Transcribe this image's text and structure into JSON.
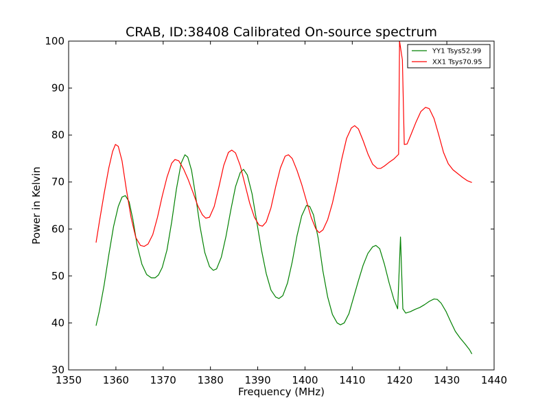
{
  "chart_data": {
    "type": "line",
    "title": "CRAB, ID:38408 Calibrated On-source spectrum",
    "xlabel": "Frequency (MHz)",
    "ylabel": "Power in Kelvin",
    "xlim": [
      1350,
      1440
    ],
    "ylim": [
      30,
      100
    ],
    "xticks": [
      1350,
      1360,
      1370,
      1380,
      1390,
      1400,
      1410,
      1420,
      1430,
      1440
    ],
    "yticks": [
      30,
      40,
      50,
      60,
      70,
      80,
      90,
      100
    ],
    "grid": false,
    "legend_position": "top-right",
    "series": [
      {
        "name": "YY1 Tsys52.99",
        "color": "#008000",
        "points": [
          [
            1355.8,
            39.4
          ],
          [
            1356.5,
            42.5
          ],
          [
            1357.5,
            48.0
          ],
          [
            1358.5,
            54.5
          ],
          [
            1359.5,
            60.5
          ],
          [
            1360.5,
            64.8
          ],
          [
            1361.3,
            66.8
          ],
          [
            1362.0,
            67.1
          ],
          [
            1362.8,
            65.8
          ],
          [
            1363.6,
            62.0
          ],
          [
            1364.5,
            56.5
          ],
          [
            1365.5,
            52.5
          ],
          [
            1366.5,
            50.3
          ],
          [
            1367.5,
            49.6
          ],
          [
            1368.3,
            49.6
          ],
          [
            1369.0,
            50.2
          ],
          [
            1369.8,
            51.8
          ],
          [
            1370.8,
            55.5
          ],
          [
            1371.8,
            61.5
          ],
          [
            1372.8,
            68.5
          ],
          [
            1373.8,
            74.0
          ],
          [
            1374.6,
            75.8
          ],
          [
            1375.2,
            75.3
          ],
          [
            1376.0,
            72.5
          ],
          [
            1376.8,
            67.5
          ],
          [
            1377.8,
            60.5
          ],
          [
            1378.8,
            55.0
          ],
          [
            1379.8,
            52.0
          ],
          [
            1380.6,
            51.2
          ],
          [
            1381.3,
            51.5
          ],
          [
            1382.3,
            54.0
          ],
          [
            1383.3,
            58.5
          ],
          [
            1384.3,
            64.0
          ],
          [
            1385.3,
            69.0
          ],
          [
            1386.3,
            72.0
          ],
          [
            1387.0,
            72.7
          ],
          [
            1387.8,
            71.5
          ],
          [
            1388.8,
            67.5
          ],
          [
            1389.8,
            61.5
          ],
          [
            1390.8,
            55.5
          ],
          [
            1391.8,
            50.5
          ],
          [
            1392.8,
            47.0
          ],
          [
            1393.8,
            45.5
          ],
          [
            1394.5,
            45.2
          ],
          [
            1395.3,
            45.8
          ],
          [
            1396.3,
            48.5
          ],
          [
            1397.3,
            53.0
          ],
          [
            1398.3,
            58.5
          ],
          [
            1399.3,
            62.8
          ],
          [
            1400.3,
            65.0
          ],
          [
            1401.0,
            64.8
          ],
          [
            1401.8,
            63.0
          ],
          [
            1402.8,
            58.0
          ],
          [
            1403.8,
            51.0
          ],
          [
            1404.8,
            45.5
          ],
          [
            1405.8,
            41.8
          ],
          [
            1406.8,
            40.0
          ],
          [
            1407.5,
            39.6
          ],
          [
            1408.3,
            40.0
          ],
          [
            1409.3,
            42.0
          ],
          [
            1410.3,
            45.5
          ],
          [
            1411.3,
            49.0
          ],
          [
            1412.3,
            52.3
          ],
          [
            1413.3,
            54.8
          ],
          [
            1414.3,
            56.2
          ],
          [
            1415.0,
            56.5
          ],
          [
            1415.8,
            55.8
          ],
          [
            1416.8,
            52.5
          ],
          [
            1417.8,
            48.5
          ],
          [
            1418.8,
            45.0
          ],
          [
            1419.6,
            43.0
          ],
          [
            1420.2,
            58.3
          ],
          [
            1420.7,
            43.0
          ],
          [
            1421.3,
            42.1
          ],
          [
            1422.3,
            42.4
          ],
          [
            1423.3,
            42.9
          ],
          [
            1424.3,
            43.3
          ],
          [
            1425.3,
            43.9
          ],
          [
            1426.3,
            44.6
          ],
          [
            1427.3,
            45.1
          ],
          [
            1428.0,
            45.0
          ],
          [
            1428.8,
            44.2
          ],
          [
            1429.8,
            42.5
          ],
          [
            1430.8,
            40.3
          ],
          [
            1431.8,
            38.2
          ],
          [
            1432.8,
            36.8
          ],
          [
            1433.8,
            35.6
          ],
          [
            1434.8,
            34.3
          ],
          [
            1435.3,
            33.4
          ]
        ]
      },
      {
        "name": "XX1 Tsys70.95",
        "color": "#ff0000",
        "points": [
          [
            1355.8,
            57.1
          ],
          [
            1356.5,
            61.5
          ],
          [
            1357.5,
            67.5
          ],
          [
            1358.5,
            73.0
          ],
          [
            1359.3,
            76.5
          ],
          [
            1359.9,
            78.0
          ],
          [
            1360.5,
            77.6
          ],
          [
            1361.3,
            74.5
          ],
          [
            1362.2,
            68.5
          ],
          [
            1363.2,
            62.5
          ],
          [
            1364.2,
            58.2
          ],
          [
            1365.2,
            56.5
          ],
          [
            1366.0,
            56.3
          ],
          [
            1366.8,
            56.8
          ],
          [
            1367.8,
            58.8
          ],
          [
            1368.8,
            62.5
          ],
          [
            1369.8,
            67.0
          ],
          [
            1370.8,
            71.0
          ],
          [
            1371.8,
            74.0
          ],
          [
            1372.5,
            74.8
          ],
          [
            1373.3,
            74.5
          ],
          [
            1374.3,
            72.8
          ],
          [
            1375.3,
            70.5
          ],
          [
            1376.3,
            67.8
          ],
          [
            1377.3,
            65.0
          ],
          [
            1378.3,
            63.0
          ],
          [
            1379.0,
            62.3
          ],
          [
            1379.8,
            62.5
          ],
          [
            1380.8,
            64.8
          ],
          [
            1381.8,
            69.0
          ],
          [
            1382.8,
            73.5
          ],
          [
            1383.8,
            76.3
          ],
          [
            1384.5,
            76.8
          ],
          [
            1385.3,
            76.2
          ],
          [
            1386.3,
            73.5
          ],
          [
            1387.3,
            69.5
          ],
          [
            1388.3,
            65.5
          ],
          [
            1389.3,
            62.5
          ],
          [
            1390.3,
            60.8
          ],
          [
            1391.0,
            60.6
          ],
          [
            1391.8,
            61.5
          ],
          [
            1392.8,
            64.5
          ],
          [
            1393.8,
            69.0
          ],
          [
            1394.8,
            73.0
          ],
          [
            1395.8,
            75.5
          ],
          [
            1396.5,
            75.8
          ],
          [
            1397.3,
            75.0
          ],
          [
            1398.3,
            72.5
          ],
          [
            1399.3,
            69.5
          ],
          [
            1400.3,
            66.0
          ],
          [
            1401.3,
            62.5
          ],
          [
            1402.3,
            60.0
          ],
          [
            1403.0,
            59.2
          ],
          [
            1403.8,
            59.8
          ],
          [
            1404.8,
            62.0
          ],
          [
            1405.8,
            65.5
          ],
          [
            1406.8,
            70.0
          ],
          [
            1407.8,
            75.0
          ],
          [
            1408.8,
            79.3
          ],
          [
            1409.8,
            81.5
          ],
          [
            1410.5,
            82.0
          ],
          [
            1411.3,
            81.3
          ],
          [
            1412.3,
            78.8
          ],
          [
            1413.3,
            76.0
          ],
          [
            1414.3,
            73.8
          ],
          [
            1415.3,
            72.9
          ],
          [
            1416.0,
            72.9
          ],
          [
            1416.8,
            73.4
          ],
          [
            1417.8,
            74.2
          ],
          [
            1418.8,
            74.9
          ],
          [
            1419.8,
            75.9
          ],
          [
            1420.0,
            100.0
          ],
          [
            1420.6,
            96.0
          ],
          [
            1421.0,
            78.0
          ],
          [
            1421.6,
            78.1
          ],
          [
            1422.5,
            80.3
          ],
          [
            1423.5,
            82.8
          ],
          [
            1424.5,
            85.0
          ],
          [
            1425.5,
            85.9
          ],
          [
            1426.3,
            85.6
          ],
          [
            1427.3,
            83.5
          ],
          [
            1428.3,
            80.0
          ],
          [
            1429.3,
            76.3
          ],
          [
            1430.3,
            73.9
          ],
          [
            1431.3,
            72.6
          ],
          [
            1432.3,
            71.8
          ],
          [
            1433.3,
            71.0
          ],
          [
            1434.3,
            70.3
          ],
          [
            1435.3,
            69.9
          ]
        ]
      }
    ]
  }
}
